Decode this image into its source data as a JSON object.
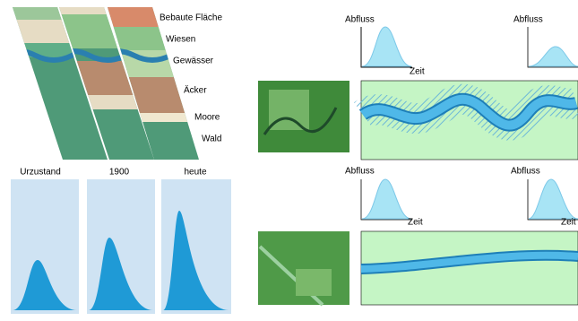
{
  "land_use": {
    "labels": [
      "Bebaute Fläche",
      "Wiesen",
      "Gewässer",
      "Äcker",
      "Moore",
      "Wald"
    ]
  },
  "eras": [
    "Urzustand",
    "1900",
    "heute"
  ],
  "hydrographs": [
    {
      "y_label": "Abfluss",
      "x_label": "Zeit"
    },
    {
      "y_label": "Abfluss"
    },
    {
      "y_label": "Abfluss",
      "x_label": "Zeit"
    },
    {
      "y_label": "Abfluss",
      "x_label": "Zeit"
    }
  ]
}
